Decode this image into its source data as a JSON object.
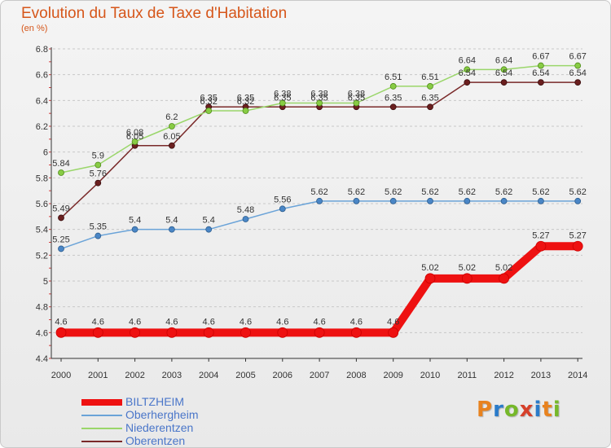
{
  "title": "Evolution du Taux de Taxe d'Habitation",
  "subtitle": "(en %)",
  "logo_text": "Proxiti",
  "logo_colors": [
    "#e8821e",
    "#2a7bc9",
    "#76b82a",
    "#d6402a",
    "#2a7bc9",
    "#e8821e",
    "#76b82a"
  ],
  "chart_data": {
    "type": "line",
    "title": "Evolution du Taux de Taxe d'Habitation",
    "ylabel": "(en %)",
    "x": [
      "2000",
      "2001",
      "2002",
      "2003",
      "2004",
      "2005",
      "2006",
      "2007",
      "2008",
      "2009",
      "2010",
      "2011",
      "2012",
      "2013",
      "2014"
    ],
    "ylim": [
      4.4,
      6.8
    ],
    "yticks": [
      4.4,
      4.6,
      4.8,
      5,
      5.2,
      5.4,
      5.6,
      5.8,
      6,
      6.2,
      6.4,
      6.6,
      6.8
    ],
    "ytick_labels": [
      "4.4",
      "4.6",
      "4.8",
      "5",
      "5.2",
      "5.4",
      "5.6",
      "5.8",
      "6",
      "6.2",
      "6.4",
      "6.6",
      "6.8"
    ],
    "grid": "horizontal dashed",
    "legend_position": "bottom-left",
    "series": [
      {
        "name": "BILTZHEIM",
        "color": "#ee1111",
        "values": [
          4.6,
          4.6,
          4.6,
          4.6,
          4.6,
          4.6,
          4.6,
          4.6,
          4.6,
          4.6,
          5.02,
          5.02,
          5.02,
          5.27,
          5.27
        ],
        "labels": [
          "4.6",
          "4.6",
          "4.6",
          "4.6",
          "4.6",
          "4.6",
          "4.6",
          "4.6",
          "4.6",
          "4.6",
          "5.02",
          "5.02",
          "5.02",
          "5.27",
          "5.27"
        ]
      },
      {
        "name": "Oberhergheim",
        "color": "#5b9bd5",
        "values": [
          5.25,
          5.35,
          5.4,
          5.4,
          5.4,
          5.48,
          5.56,
          5.62,
          5.62,
          5.62,
          5.62,
          5.62,
          5.62,
          5.62,
          5.62
        ],
        "labels": [
          "5.25",
          "5.35",
          "5.4",
          "5.4",
          "5.4",
          "5.48",
          "5.56",
          "5.62",
          "5.62",
          "5.62",
          "5.62",
          "5.62",
          "5.62",
          "5.62",
          "5.62"
        ]
      },
      {
        "name": "Niederentzen",
        "color": "#8fd14f",
        "values": [
          5.84,
          5.9,
          6.08,
          6.2,
          6.32,
          6.32,
          6.38,
          6.38,
          6.38,
          6.51,
          6.51,
          6.64,
          6.64,
          6.67,
          6.67
        ],
        "labels": [
          "5.84",
          "5.9",
          "6.08",
          "6.2",
          "6.32",
          "6.32",
          "6.38",
          "6.38",
          "6.38",
          "6.51",
          "6.51",
          "6.64",
          "6.64",
          "6.67",
          "6.67"
        ]
      },
      {
        "name": "Oberentzen",
        "color": "#7a2a2a",
        "values": [
          5.49,
          5.76,
          6.05,
          6.05,
          6.35,
          6.35,
          6.35,
          6.35,
          6.35,
          6.35,
          6.35,
          6.54,
          6.54,
          6.54,
          6.54
        ],
        "labels": [
          "5.49",
          "5.76",
          "6.05",
          "6.05",
          "6.35",
          "6.35",
          "6.35",
          "6.35",
          "6.35",
          "6.35",
          "6.35",
          "6.54",
          "6.54",
          "6.54",
          "6.54"
        ]
      }
    ]
  }
}
